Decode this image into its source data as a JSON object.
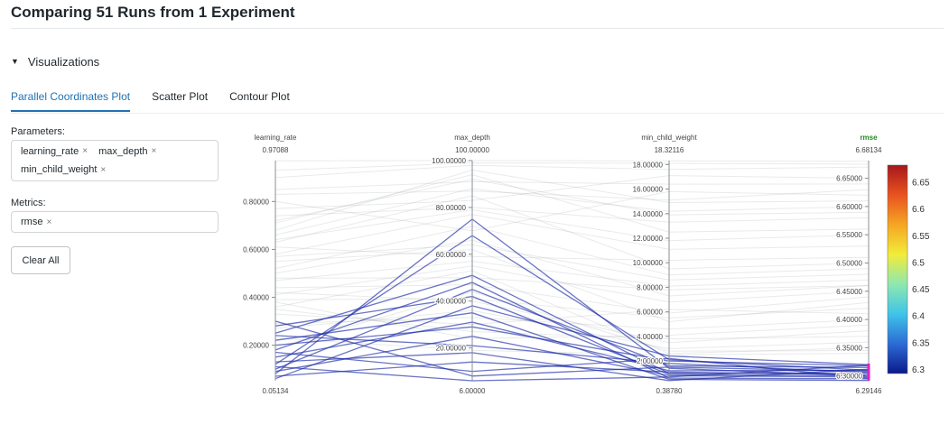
{
  "page": {
    "title": "Comparing 51 Runs from 1 Experiment"
  },
  "section": {
    "label": "Visualizations"
  },
  "tabs": [
    {
      "label": "Parallel Coordinates Plot",
      "active": true
    },
    {
      "label": "Scatter Plot",
      "active": false
    },
    {
      "label": "Contour Plot",
      "active": false
    }
  ],
  "parameters": {
    "label": "Parameters:",
    "chips": [
      "learning_rate",
      "max_depth",
      "min_child_weight"
    ]
  },
  "metrics": {
    "label": "Metrics:",
    "chips": [
      "rmse"
    ]
  },
  "clear_all_label": "Clear All",
  "remove_glyph": "×",
  "chart_data": {
    "type": "parallel_coordinates",
    "axes": [
      {
        "name": "learning_rate",
        "min": 0.05134,
        "max": 0.97088,
        "min_label": "0.05134",
        "max_label": "0.97088",
        "ticks": [
          0.2,
          0.4,
          0.6,
          0.8
        ],
        "tick_labels": [
          "0.20000",
          "0.40000",
          "0.60000",
          "0.80000"
        ]
      },
      {
        "name": "max_depth",
        "min": 6,
        "max": 100,
        "min_label": "6.00000",
        "max_label": "100.00000",
        "ticks": [
          20,
          40,
          60,
          80,
          100
        ],
        "tick_labels": [
          "20.00000",
          "40.00000",
          "60.00000",
          "80.00000",
          "100.00000"
        ]
      },
      {
        "name": "min_child_weight",
        "min": 0.3878,
        "max": 18.32116,
        "min_label": "0.38780",
        "max_label": "18.32116",
        "ticks": [
          2,
          4,
          6,
          8,
          10,
          12,
          14,
          16,
          18
        ],
        "tick_labels": [
          "2.00000",
          "4.00000",
          "6.00000",
          "8.00000",
          "10.00000",
          "12.00000",
          "14.00000",
          "16.00000",
          "18.00000"
        ]
      },
      {
        "name": "rmse",
        "min": 6.29146,
        "max": 6.68134,
        "min_label": "6.29146",
        "max_label": "6.68134",
        "ticks": [
          6.3,
          6.35,
          6.4,
          6.45,
          6.5,
          6.55,
          6.6,
          6.65
        ],
        "tick_labels": [
          "6.30000",
          "6.35000",
          "6.40000",
          "6.45000",
          "6.50000",
          "6.55000",
          "6.60000",
          "6.65000"
        ]
      }
    ],
    "colorbar": {
      "ticks": [
        6.3,
        6.35,
        6.4,
        6.45,
        6.5,
        6.55,
        6.6,
        6.65
      ],
      "tick_labels": [
        "6.3",
        "6.35",
        "6.4",
        "6.45",
        "6.5",
        "6.55",
        "6.6",
        "6.65"
      ]
    },
    "selection": {
      "axis": "rmse",
      "range": [
        6.29146,
        6.322
      ],
      "color": "#e020c8"
    },
    "selected_color": "#1a2aa8",
    "colorscale": [
      "#0b1a8a",
      "#2c6bd6",
      "#3fc4e8",
      "#8ee8b0",
      "#f2ec3a",
      "#f5a623",
      "#e8531f",
      "#a6171b"
    ],
    "runs": [
      {
        "learning_rate": 0.08,
        "max_depth": 75,
        "min_child_weight": 1.4,
        "rmse": 6.3
      },
      {
        "learning_rate": 0.12,
        "max_depth": 68,
        "min_child_weight": 2.1,
        "rmse": 6.31
      },
      {
        "learning_rate": 0.25,
        "max_depth": 51,
        "min_child_weight": 1.0,
        "rmse": 6.305
      },
      {
        "learning_rate": 0.18,
        "max_depth": 48,
        "min_child_weight": 0.6,
        "rmse": 6.295
      },
      {
        "learning_rate": 0.1,
        "max_depth": 45,
        "min_child_weight": 1.6,
        "rmse": 6.315
      },
      {
        "learning_rate": 0.28,
        "max_depth": 42,
        "min_child_weight": 0.9,
        "rmse": 6.3
      },
      {
        "learning_rate": 0.06,
        "max_depth": 38,
        "min_child_weight": 2.4,
        "rmse": 6.32
      },
      {
        "learning_rate": 0.22,
        "max_depth": 35,
        "min_child_weight": 0.5,
        "rmse": 6.292
      },
      {
        "learning_rate": 0.15,
        "max_depth": 31,
        "min_child_weight": 1.2,
        "rmse": 6.31
      },
      {
        "learning_rate": 0.2,
        "max_depth": 29,
        "min_child_weight": 2.0,
        "rmse": 6.318
      },
      {
        "learning_rate": 0.09,
        "max_depth": 25,
        "min_child_weight": 0.8,
        "rmse": 6.298
      },
      {
        "learning_rate": 0.24,
        "max_depth": 21,
        "min_child_weight": 1.8,
        "rmse": 6.306
      },
      {
        "learning_rate": 0.13,
        "max_depth": 18,
        "min_child_weight": 0.4,
        "rmse": 6.312
      },
      {
        "learning_rate": 0.07,
        "max_depth": 14,
        "min_child_weight": 1.1,
        "rmse": 6.302
      },
      {
        "learning_rate": 0.17,
        "max_depth": 10,
        "min_child_weight": 2.2,
        "rmse": 6.296
      },
      {
        "learning_rate": 0.3,
        "max_depth": 8,
        "min_child_weight": 1.5,
        "rmse": 6.308
      },
      {
        "learning_rate": 0.11,
        "max_depth": 6,
        "min_child_weight": 0.7,
        "rmse": 6.319
      },
      {
        "learning_rate": 0.36,
        "max_depth": 53,
        "min_child_weight": 2.6,
        "rmse": 6.35
      },
      {
        "learning_rate": 0.42,
        "max_depth": 40,
        "min_child_weight": 3.5,
        "rmse": 6.38
      },
      {
        "learning_rate": 0.55,
        "max_depth": 62,
        "min_child_weight": 5.2,
        "rmse": 6.43
      },
      {
        "learning_rate": 0.63,
        "max_depth": 85,
        "min_child_weight": 9.5,
        "rmse": 6.5
      },
      {
        "learning_rate": 0.71,
        "max_depth": 94,
        "min_child_weight": 12.5,
        "rmse": 6.56
      },
      {
        "learning_rate": 0.8,
        "max_depth": 70,
        "min_child_weight": 15.8,
        "rmse": 6.62
      },
      {
        "learning_rate": 0.9,
        "max_depth": 98,
        "min_child_weight": 17.6,
        "rmse": 6.67
      },
      {
        "learning_rate": 0.47,
        "max_depth": 57,
        "min_child_weight": 8.1,
        "rmse": 6.47
      },
      {
        "learning_rate": 0.33,
        "max_depth": 30,
        "min_child_weight": 6.2,
        "rmse": 6.41
      },
      {
        "learning_rate": 0.58,
        "max_depth": 77,
        "min_child_weight": 11.1,
        "rmse": 6.53
      },
      {
        "learning_rate": 0.66,
        "max_depth": 88,
        "min_child_weight": 14.2,
        "rmse": 6.6
      },
      {
        "learning_rate": 0.38,
        "max_depth": 24,
        "min_child_weight": 4.1,
        "rmse": 6.39
      },
      {
        "learning_rate": 0.5,
        "max_depth": 66,
        "min_child_weight": 7.3,
        "rmse": 6.46
      },
      {
        "learning_rate": 0.85,
        "max_depth": 91,
        "min_child_weight": 16.4,
        "rmse": 6.64
      },
      {
        "learning_rate": 0.27,
        "max_depth": 36,
        "min_child_weight": 3.0,
        "rmse": 6.36
      },
      {
        "learning_rate": 0.44,
        "max_depth": 47,
        "min_child_weight": 5.9,
        "rmse": 6.44
      },
      {
        "learning_rate": 0.74,
        "max_depth": 80,
        "min_child_weight": 13.3,
        "rmse": 6.58
      },
      {
        "learning_rate": 0.61,
        "max_depth": 59,
        "min_child_weight": 10.2,
        "rmse": 6.51
      },
      {
        "learning_rate": 0.19,
        "max_depth": 44,
        "min_child_weight": 2.8,
        "rmse": 6.345
      },
      {
        "learning_rate": 0.52,
        "max_depth": 72,
        "min_child_weight": 9.0,
        "rmse": 6.49
      },
      {
        "learning_rate": 0.68,
        "max_depth": 96,
        "min_child_weight": 14.9,
        "rmse": 6.61
      },
      {
        "learning_rate": 0.29,
        "max_depth": 33,
        "min_child_weight": 4.6,
        "rmse": 6.4
      },
      {
        "learning_rate": 0.77,
        "max_depth": 83,
        "min_child_weight": 17.1,
        "rmse": 6.65
      },
      {
        "learning_rate": 0.41,
        "max_depth": 55,
        "min_child_weight": 6.8,
        "rmse": 6.45
      },
      {
        "learning_rate": 0.93,
        "max_depth": 99,
        "min_child_weight": 18.1,
        "rmse": 6.675
      },
      {
        "learning_rate": 0.35,
        "max_depth": 27,
        "min_child_weight": 3.8,
        "rmse": 6.37
      },
      {
        "learning_rate": 0.57,
        "max_depth": 64,
        "min_child_weight": 8.6,
        "rmse": 6.48
      },
      {
        "learning_rate": 0.83,
        "max_depth": 87,
        "min_child_weight": 15.1,
        "rmse": 6.63
      },
      {
        "learning_rate": 0.48,
        "max_depth": 50,
        "min_child_weight": 7.8,
        "rmse": 6.46
      },
      {
        "learning_rate": 0.23,
        "max_depth": 19,
        "min_child_weight": 2.5,
        "rmse": 6.34
      },
      {
        "learning_rate": 0.64,
        "max_depth": 79,
        "min_child_weight": 11.8,
        "rmse": 6.55
      },
      {
        "learning_rate": 0.39,
        "max_depth": 41,
        "min_child_weight": 5.5,
        "rmse": 6.42
      },
      {
        "learning_rate": 0.72,
        "max_depth": 92,
        "min_child_weight": 13.9,
        "rmse": 6.59
      },
      {
        "learning_rate": 0.97,
        "max_depth": 100,
        "min_child_weight": 18.3,
        "rmse": 6.68
      }
    ]
  }
}
